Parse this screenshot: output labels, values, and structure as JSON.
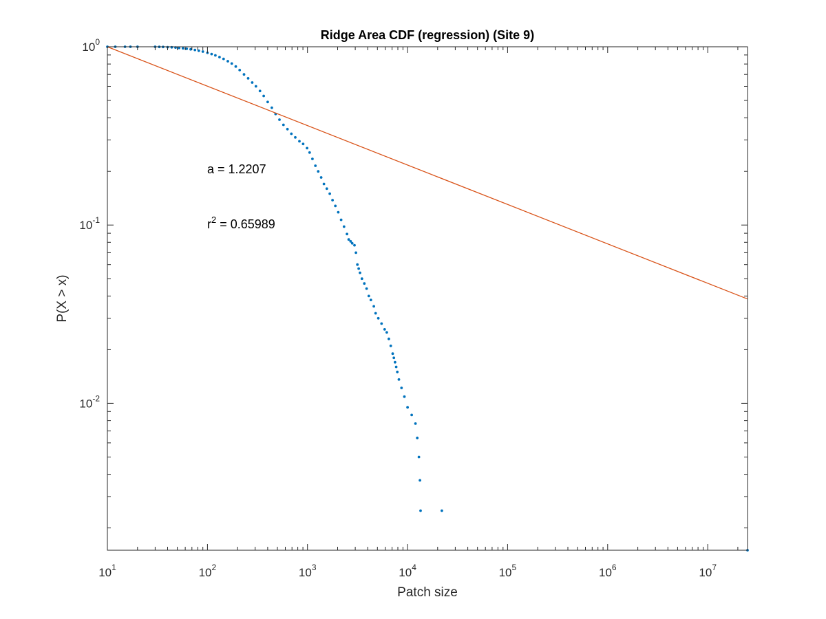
{
  "chart_data": {
    "type": "scatter",
    "title": "Ridge Area CDF (regression) (Site 9)",
    "xlabel": "Patch size",
    "ylabel": "P(X > x)",
    "xscale": "log",
    "yscale": "log",
    "xlim": [
      10,
      25000000
    ],
    "ylim": [
      0.0015,
      1
    ],
    "grid": false,
    "box": true,
    "x_ticks": [
      {
        "base": "10",
        "exp": "1",
        "value": 10
      },
      {
        "base": "10",
        "exp": "2",
        "value": 100
      },
      {
        "base": "10",
        "exp": "3",
        "value": 1000
      },
      {
        "base": "10",
        "exp": "4",
        "value": 10000
      },
      {
        "base": "10",
        "exp": "5",
        "value": 100000
      },
      {
        "base": "10",
        "exp": "6",
        "value": 1000000
      },
      {
        "base": "10",
        "exp": "7",
        "value": 10000000
      }
    ],
    "y_ticks": [
      {
        "base": "10",
        "exp": "0",
        "value": 1
      },
      {
        "base": "10",
        "exp": "-1",
        "value": 0.1
      },
      {
        "base": "10",
        "exp": "-2",
        "value": 0.01
      }
    ],
    "annotations": [
      {
        "id": "exponent",
        "text": "a = 1.2207"
      },
      {
        "id": "r2",
        "prefix": "r",
        "sup": "2",
        "suffix": " = 0.65989"
      }
    ],
    "colors": {
      "data": "#0072BD",
      "fit": "#D95319",
      "axes": "#262626"
    },
    "series": [
      {
        "kind": "points",
        "color": "#0072BD",
        "x": [
          10,
          12,
          15,
          17,
          20,
          30,
          33,
          36,
          40,
          44,
          48,
          52,
          57,
          62,
          68,
          75,
          82,
          90,
          100,
          110,
          120,
          132,
          145,
          160,
          175,
          192,
          210,
          232,
          255,
          280,
          305,
          335,
          365,
          400,
          440,
          480,
          525,
          575,
          630,
          690,
          755,
          830,
          905,
          990,
          1050,
          1120,
          1200,
          1280,
          1370,
          1460,
          1560,
          1670,
          1780,
          1900,
          2030,
          2170,
          2320,
          2480,
          2580,
          2700,
          2800,
          2950,
          3050,
          3150,
          3250,
          3350,
          3500,
          3700,
          3900,
          4100,
          4300,
          4600,
          4800,
          5100,
          5500,
          5900,
          6200,
          6500,
          6800,
          7100,
          7300,
          7500,
          7700,
          7900,
          8200,
          8700,
          9300,
          10000,
          11000,
          12000,
          12500,
          13000,
          13300,
          13500,
          22000,
          25000000
        ],
        "y": [
          1,
          1,
          1,
          1,
          1,
          1,
          0.998,
          0.997,
          0.995,
          0.993,
          0.99,
          0.985,
          0.98,
          0.975,
          0.968,
          0.96,
          0.95,
          0.94,
          0.925,
          0.91,
          0.895,
          0.875,
          0.855,
          0.83,
          0.805,
          0.775,
          0.74,
          0.7,
          0.665,
          0.63,
          0.6,
          0.565,
          0.53,
          0.49,
          0.455,
          0.42,
          0.39,
          0.365,
          0.345,
          0.325,
          0.31,
          0.295,
          0.285,
          0.27,
          0.255,
          0.235,
          0.215,
          0.2,
          0.185,
          0.17,
          0.16,
          0.15,
          0.138,
          0.128,
          0.118,
          0.107,
          0.098,
          0.089,
          0.083,
          0.081,
          0.079,
          0.077,
          0.07,
          0.06,
          0.057,
          0.054,
          0.05,
          0.047,
          0.044,
          0.04,
          0.038,
          0.035,
          0.032,
          0.03,
          0.028,
          0.026,
          0.025,
          0.023,
          0.021,
          0.019,
          0.018,
          0.017,
          0.016,
          0.015,
          0.0136,
          0.0122,
          0.0109,
          0.0095,
          0.0086,
          0.0077,
          0.0064,
          0.005,
          0.0037,
          0.0025,
          0.0025,
          0.0015
        ]
      },
      {
        "kind": "fit-line",
        "color": "#D95319",
        "x": [
          10,
          25000000
        ],
        "y": [
          1,
          0.0385
        ]
      }
    ]
  }
}
